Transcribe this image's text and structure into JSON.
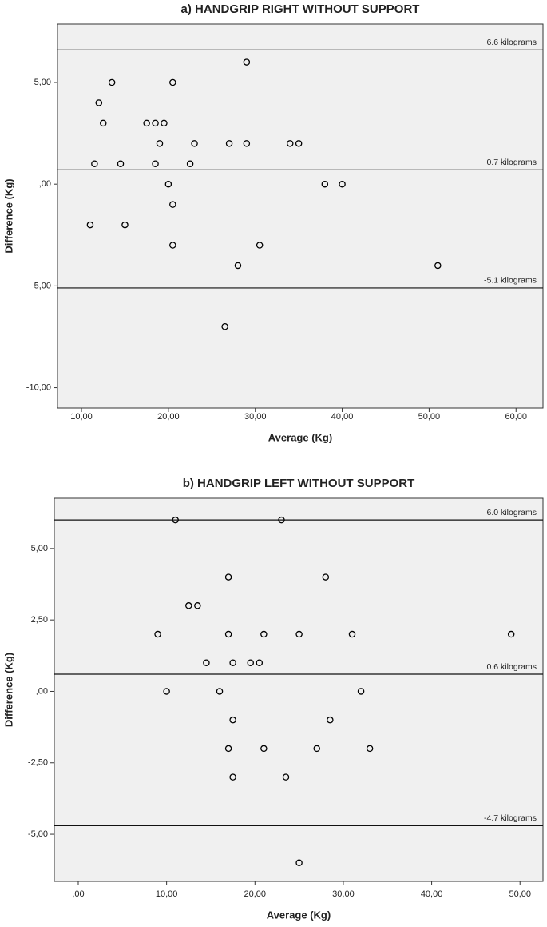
{
  "chart_data": [
    {
      "type": "scatter",
      "title": "a) HANDGRIP RIGHT WITHOUT SUPPORT",
      "x_label": "Average (Kg)",
      "y_label": "Difference (Kg)",
      "color": "#000000",
      "background": "#f0f0f0",
      "x": [
        29,
        13.5,
        20.5,
        12,
        12.5,
        17.5,
        18.5,
        19.5,
        19,
        23,
        27,
        29,
        34,
        35,
        11.5,
        14.5,
        18.5,
        22.5,
        20,
        38,
        40,
        20.5,
        11,
        15,
        20.5,
        30.5,
        28,
        51,
        26.5
      ],
      "y": [
        6,
        5,
        5,
        4,
        3,
        3,
        3,
        3,
        2,
        2,
        2,
        2,
        2,
        2,
        1,
        1,
        1,
        1,
        0,
        0,
        0,
        -1,
        -2,
        -2,
        -3,
        -3,
        -4,
        -4,
        -7
      ],
      "xlim": [
        7.24,
        63.1
      ],
      "ylim": [
        -11.0,
        7.87
      ],
      "xticks": [
        {
          "value": 10,
          "label": "10,00"
        },
        {
          "value": 20,
          "label": "20,00"
        },
        {
          "value": 30,
          "label": "30,00"
        },
        {
          "value": 40,
          "label": "40,00"
        },
        {
          "value": 50,
          "label": "50,00"
        },
        {
          "value": 60,
          "label": "60,00"
        }
      ],
      "yticks": [
        {
          "value": 5,
          "label": "5,00"
        },
        {
          "value": 0,
          "label": ",00"
        },
        {
          "value": -5,
          "label": "-5,00"
        },
        {
          "value": -10,
          "label": "-10,00"
        }
      ],
      "reference_lines": [
        {
          "value": 6.6,
          "label": "6.6 kilograms"
        },
        {
          "value": 0.7,
          "label": "0.7 kilograms"
        },
        {
          "value": -5.1,
          "label": "-5.1 kilograms"
        }
      ]
    },
    {
      "type": "scatter",
      "title": "b) HANDGRIP LEFT WITHOUT SUPPORT",
      "x_label": "Average (Kg)",
      "y_label": "Difference (Kg)",
      "color": "#000000",
      "background": "#f0f0f0",
      "x": [
        11,
        23,
        17,
        28,
        12.5,
        13.5,
        9,
        17,
        21,
        25,
        31,
        49,
        14.5,
        17.5,
        19.5,
        20.5,
        10,
        16,
        32,
        17.5,
        28.5,
        17,
        21,
        27,
        33,
        17.5,
        23.5,
        25
      ],
      "y": [
        6,
        6,
        4,
        4,
        3,
        3,
        2,
        2,
        2,
        2,
        2,
        2,
        1,
        1,
        1,
        1,
        0,
        0,
        0,
        -1,
        -1,
        -2,
        -2,
        -2,
        -2,
        -3,
        -3,
        -6
      ],
      "xlim": [
        -2.71,
        52.6
      ],
      "ylim": [
        -6.65,
        6.76
      ],
      "xticks": [
        {
          "value": 0,
          "label": ",00"
        },
        {
          "value": 10,
          "label": "10,00"
        },
        {
          "value": 20,
          "label": "20,00"
        },
        {
          "value": 30,
          "label": "30,00"
        },
        {
          "value": 40,
          "label": "40,00"
        },
        {
          "value": 50,
          "label": "50,00"
        }
      ],
      "yticks": [
        {
          "value": 5,
          "label": "5,00"
        },
        {
          "value": 2.5,
          "label": "2,50"
        },
        {
          "value": 0,
          "label": ",00"
        },
        {
          "value": -2.5,
          "label": "-2,50"
        },
        {
          "value": -5,
          "label": "-5,00"
        }
      ],
      "reference_lines": [
        {
          "value": 6.0,
          "label": "6.0 kilograms"
        },
        {
          "value": 0.6,
          "label": "0.6 kilograms"
        },
        {
          "value": -4.7,
          "label": "-4.7 kilograms"
        }
      ]
    }
  ]
}
